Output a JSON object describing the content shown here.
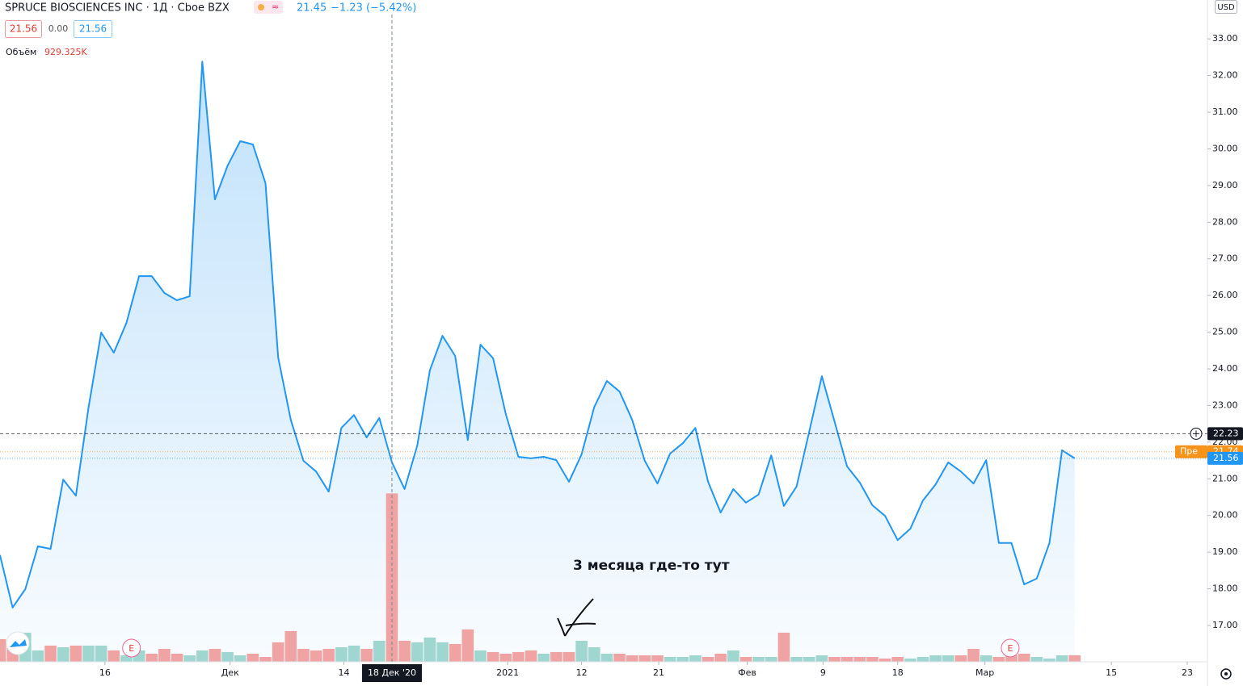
{
  "chart_data": {
    "type": "area",
    "title": "SPRUCE BIOSCIENCES INC · 1Д · Cboe BZX",
    "last": "21.45",
    "change": "−1.23 (−5.42%)",
    "bid": "21.56",
    "spread": "0.00",
    "ask": "21.56",
    "volume_label": "Объём",
    "volume_value": "929.325K",
    "currency": "USD",
    "annotation": "3 месяца где-то тут",
    "series": [
      {
        "name": "Price",
        "color": "#2196f3",
        "values": [
          18.92,
          17.49,
          17.99,
          19.16,
          19.09,
          20.98,
          20.54,
          22.94,
          24.99,
          24.44,
          25.25,
          26.53,
          26.53,
          26.07,
          25.87,
          25.98,
          32.38,
          28.62,
          29.54,
          30.21,
          30.12,
          29.06,
          24.31,
          22.61,
          21.49,
          21.2,
          20.65,
          22.39,
          22.74,
          22.13,
          22.66,
          21.45,
          20.72,
          21.91,
          23.96,
          24.9,
          24.35,
          22.06,
          24.66,
          24.29,
          22.77,
          21.6,
          21.56,
          21.6,
          21.51,
          20.92,
          21.67,
          22.96,
          23.67,
          23.38,
          22.61,
          21.49,
          20.87,
          21.69,
          21.97,
          22.39,
          20.92,
          20.08,
          20.72,
          20.35,
          20.57,
          21.64,
          20.26,
          20.79,
          22.28,
          23.8,
          22.57,
          21.34,
          20.9,
          20.28,
          19.99,
          19.33,
          19.64,
          20.41,
          20.85,
          21.45,
          21.2,
          20.87,
          21.51,
          19.25,
          19.25,
          18.12,
          18.28,
          19.25,
          21.78,
          21.56
        ]
      },
      {
        "name": "Объём",
        "axis": "y2",
        "up_color": "#9fd6d0",
        "down_color": "#f0a3a3",
        "values": [
          3190,
          2280,
          4100,
          1600,
          2280,
          2050,
          2280,
          2280,
          2280,
          1600,
          910,
          1600,
          1140,
          1820,
          1140,
          910,
          1600,
          1820,
          1370,
          910,
          1140,
          680,
          2740,
          4330,
          1820,
          1600,
          1820,
          2050,
          2280,
          1820,
          2960,
          23710,
          2960,
          2740,
          3420,
          2740,
          2510,
          4560,
          1600,
          1370,
          1140,
          1370,
          1600,
          1140,
          1370,
          1370,
          2960,
          2050,
          1140,
          1140,
          910,
          910,
          910,
          680,
          680,
          910,
          680,
          1140,
          1600,
          680,
          680,
          680,
          4100,
          680,
          680,
          910,
          680,
          680,
          680,
          680,
          460,
          680,
          460,
          680,
          910,
          910,
          910,
          1820,
          910,
          680,
          910,
          1140,
          680,
          460,
          910,
          929.325
        ]
      }
    ],
    "xlim": [
      0,
      95.5
    ],
    "xticks": [
      {
        "value": 8.3,
        "label": "16"
      },
      {
        "value": 18.2,
        "label": "Дек"
      },
      {
        "value": 27.2,
        "label": "14"
      },
      {
        "value": 40.15,
        "label": "2021"
      },
      {
        "value": 46,
        "label": "12"
      },
      {
        "value": 52.1,
        "label": "21"
      },
      {
        "value": 59.1,
        "label": "Фев"
      },
      {
        "value": 65.1,
        "label": "9"
      },
      {
        "value": 71,
        "label": "18"
      },
      {
        "value": 77.9,
        "label": "Мар"
      },
      {
        "value": 87.9,
        "label": "15"
      },
      {
        "value": 93.9,
        "label": "23"
      }
    ],
    "ylim": [
      16.01,
      34.06
    ],
    "yticks": [
      {
        "value": 17,
        "label": "17.00"
      },
      {
        "value": 18,
        "label": "18.00"
      },
      {
        "value": 19,
        "label": "19.00"
      },
      {
        "value": 20,
        "label": "20.00"
      },
      {
        "value": 21,
        "label": "21.00"
      },
      {
        "value": 22,
        "label": "22.00"
      },
      {
        "value": 23,
        "label": "23.00"
      },
      {
        "value": 24,
        "label": "24.00"
      },
      {
        "value": 25,
        "label": "25.00"
      },
      {
        "value": 26,
        "label": "26.00"
      },
      {
        "value": 27,
        "label": "27.00"
      },
      {
        "value": 28,
        "label": "28.00"
      },
      {
        "value": 29,
        "label": "29.00"
      },
      {
        "value": 30,
        "label": "30.00"
      },
      {
        "value": 31,
        "label": "31.00"
      },
      {
        "value": 32,
        "label": "32.00"
      },
      {
        "value": 33,
        "label": "33.00"
      }
    ],
    "y2lim": [
      0,
      25000
    ],
    "grid": false,
    "crosshair": {
      "x": 31,
      "label": "18 Дек '20"
    },
    "earnings_markers": [
      {
        "x": 10.4,
        "label": "E"
      },
      {
        "x": 79.9,
        "label": "E"
      }
    ],
    "price_lines": [
      {
        "value": 22.23,
        "color": "#131722",
        "style": "dashed"
      },
      {
        "value": 21.74,
        "color": "#f7931a",
        "style": "dotted",
        "prefix": "Пре"
      },
      {
        "value": 21.56,
        "color": "#2196f3",
        "style": "dotted"
      }
    ]
  }
}
